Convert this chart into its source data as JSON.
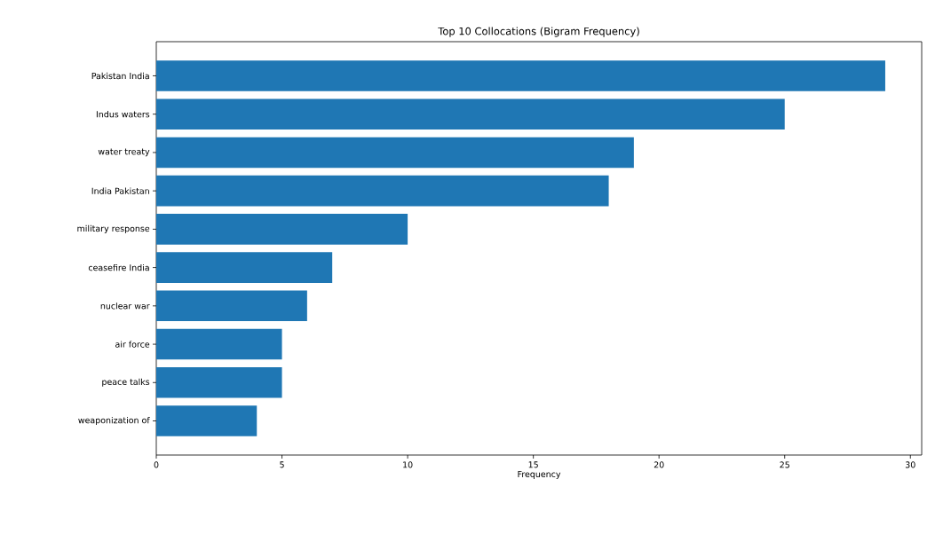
{
  "chart_data": {
    "type": "bar",
    "orientation": "horizontal",
    "title": "Top 10 Collocations (Bigram Frequency)",
    "xlabel": "Frequency",
    "categories": [
      "Pakistan India",
      "Indus waters",
      "water treaty",
      "India Pakistan",
      "military response",
      "ceasefire India",
      "nuclear war",
      "air force",
      "peace talks",
      "weaponization of"
    ],
    "values": [
      29,
      25,
      19,
      18,
      10,
      7,
      6,
      5,
      5,
      4
    ],
    "color": "#1f77b4",
    "xlim": [
      0,
      30.45
    ],
    "xticks": [
      0,
      5,
      10,
      15,
      20,
      25,
      30
    ]
  }
}
